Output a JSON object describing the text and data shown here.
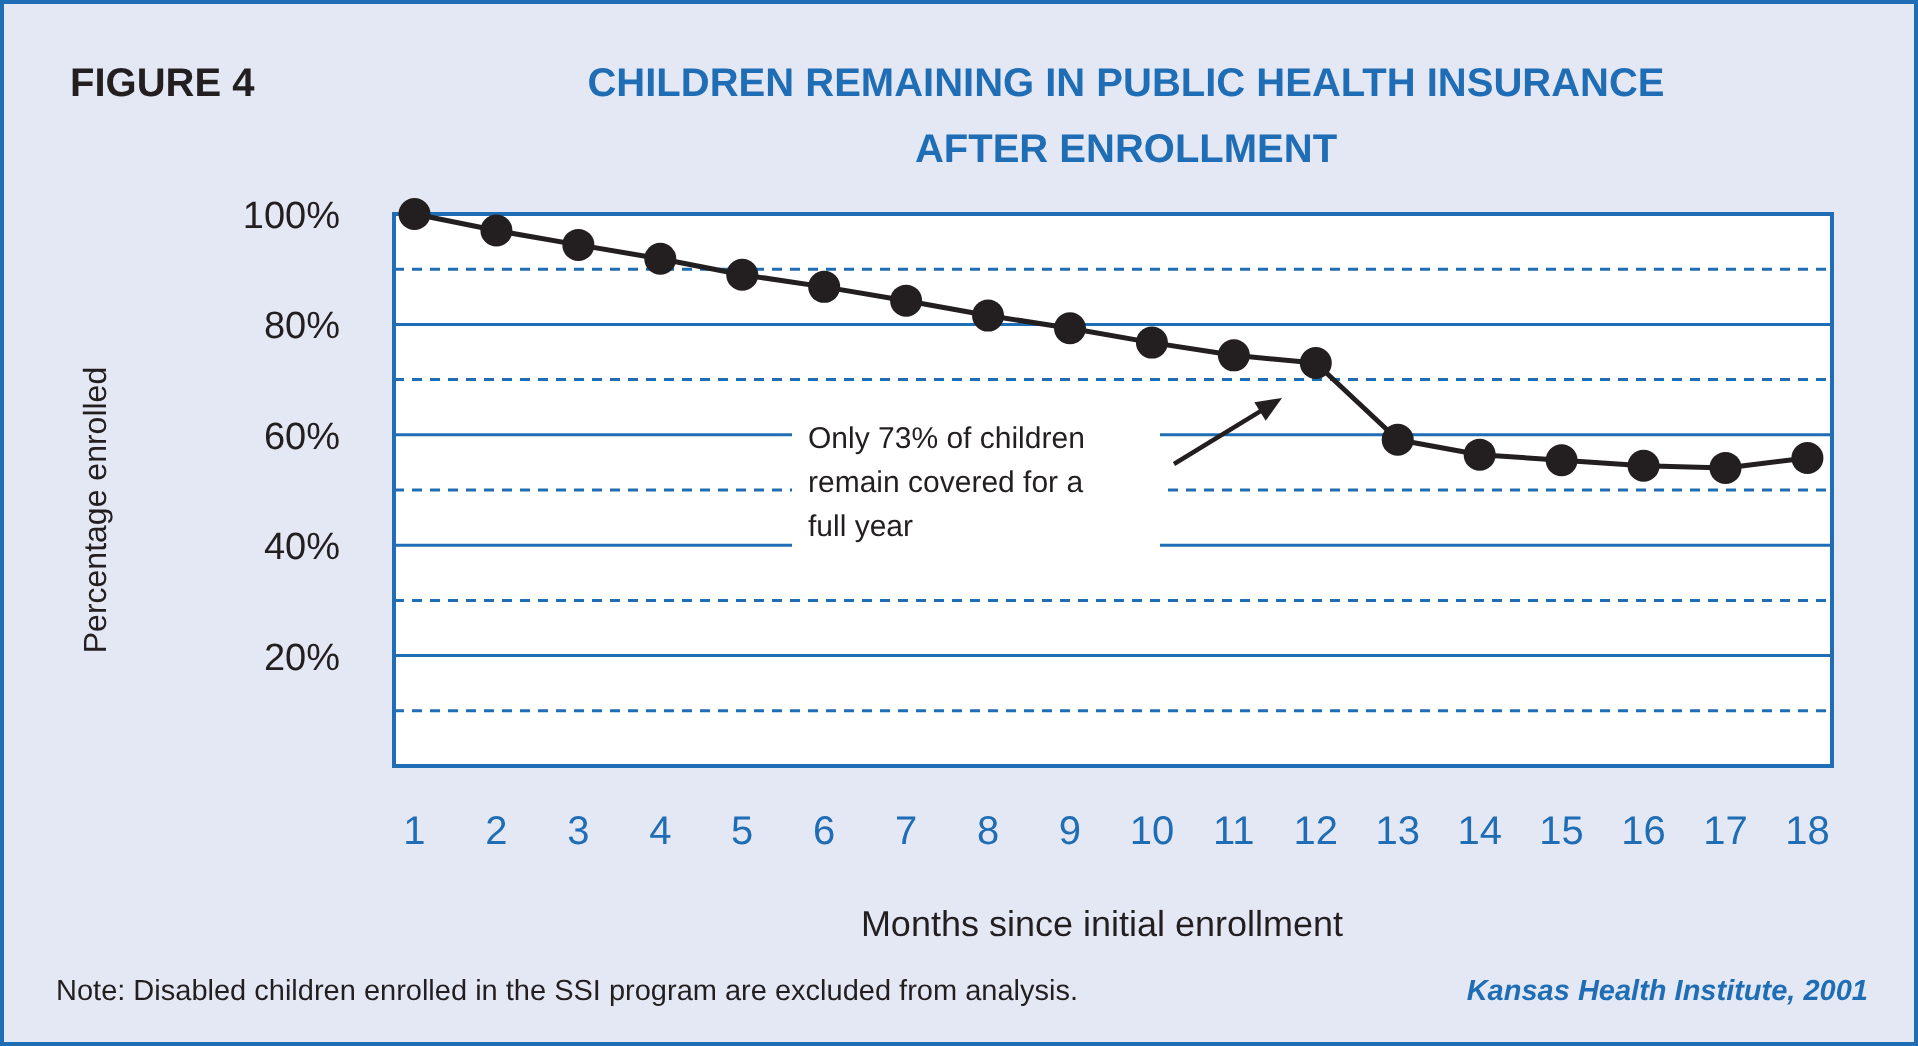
{
  "chart_data": {
    "type": "line",
    "title": "CHILDREN REMAINING IN PUBLIC HEALTH INSURANCE AFTER ENROLLMENT",
    "xlabel": "Months since initial enrollment",
    "ylabel": "Percentage enrolled",
    "x": [
      1,
      2,
      3,
      4,
      5,
      6,
      7,
      8,
      9,
      10,
      11,
      12,
      13,
      14,
      15,
      16,
      17,
      18
    ],
    "series": [
      {
        "color": "#231f20",
        "values": [
          100,
          97,
          94.4,
          91.9,
          89,
          86.8,
          84.3,
          81.6,
          79.3,
          76.7,
          74.4,
          73,
          59.1,
          56.4,
          55.4,
          54.4,
          54,
          55.8
        ]
      }
    ],
    "xlim": [
      0.75,
      18.3
    ],
    "xticks": [
      1,
      2,
      3,
      4,
      5,
      6,
      7,
      8,
      9,
      10,
      11,
      12,
      13,
      14,
      15,
      16,
      17,
      18
    ],
    "ylim": [
      0,
      100
    ],
    "yticks": [
      {
        "value": 10,
        "label": null
      },
      {
        "value": 20,
        "label": "20%"
      },
      {
        "value": 30,
        "label": null
      },
      {
        "value": 40,
        "label": "40%"
      },
      {
        "value": 50,
        "label": null
      },
      {
        "value": 60,
        "label": "60%"
      },
      {
        "value": 70,
        "label": null
      },
      {
        "value": 80,
        "label": "80%"
      },
      {
        "value": 90,
        "label": null
      },
      {
        "value": 100,
        "label": "100%"
      }
    ],
    "grid": "y",
    "marker": "circle",
    "line_style": "solid",
    "annotations": [
      "FIGURE 4",
      "Only 73% of children remain covered for a full year",
      "Note: Disabled children enrolled in the SSI program are excluded from analysis.",
      "Kansas Health Institute, 2001"
    ]
  }
}
